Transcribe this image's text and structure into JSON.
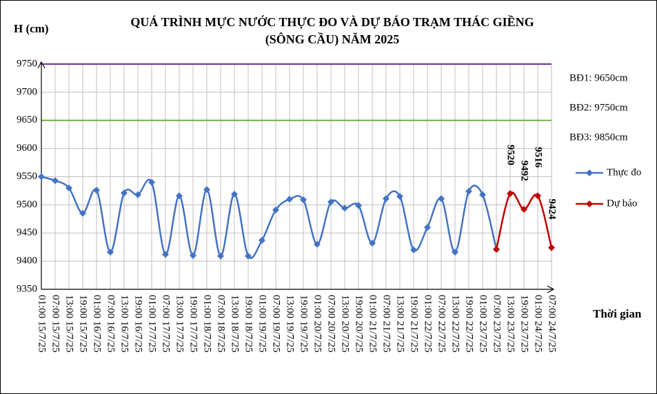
{
  "chart_data": {
    "type": "line",
    "title": [
      "QUÁ TRÌNH MỰC NƯỚC THỰC ĐO VÀ DỰ BÁO TRẠM THÁC GIỀNG",
      "(SÔNG CẦU) NĂM 2025"
    ],
    "y_label": "H (cm)",
    "x_label": "Thời gian",
    "categories": [
      "01:00 15/7/25",
      "07:00 15/7/25",
      "13:00 15/7/25",
      "19:00 15/7/25",
      "01:00 16/7/25",
      "07:00 16/7/25",
      "13:00 16/7/25",
      "19:00 16/7/25",
      "01:00 17/7/25",
      "07:00 17/7/25",
      "13:00 17/7/25",
      "19:00 17/7/25",
      "01:00 18/7/25",
      "07:00 18/7/25",
      "13:00 18/7/25",
      "19:00 18/7/25",
      "01:00 19/7/25",
      "07:00 19/7/25",
      "13:00 19/7/25",
      "19:00 19/7/25",
      "01:00 20/7/25",
      "07:00 20/7/25",
      "13:00 20/7/25",
      "19:00 20/7/25",
      "01:00 21/7/25",
      "07:00 21/7/25",
      "13:00 21/7/25",
      "19:00 21/7/25",
      "01:00 22/7/25",
      "07:00 22/7/25",
      "13:00 22/7/25",
      "19:00 22/7/25",
      "01:00 23/7/25",
      "07:00 23/7/25",
      "13:00 23/7/25",
      "19:00 23/7/25",
      "01:00 24/7/25",
      "07:00 24/7/25"
    ],
    "series": [
      {
        "name": "Thực đo",
        "color": "#4472c4",
        "values": [
          9550,
          9543,
          9530,
          9485,
          9526,
          9416,
          9521,
          9518,
          9540,
          9412,
          9516,
          9410,
          9527,
          9409,
          9519,
          9409,
          9437,
          9491,
          9510,
          9509,
          9430,
          9505,
          9494,
          9499,
          9432,
          9511,
          9515,
          9420,
          9460,
          9511,
          9416,
          9524,
          9518,
          9421,
          null,
          null,
          null,
          null
        ]
      },
      {
        "name": "Dự báo",
        "color": "#c00000",
        "values": [
          null,
          null,
          null,
          null,
          null,
          null,
          null,
          null,
          null,
          null,
          null,
          null,
          null,
          null,
          null,
          null,
          null,
          null,
          null,
          null,
          null,
          null,
          null,
          null,
          null,
          null,
          null,
          null,
          null,
          null,
          null,
          null,
          null,
          9421,
          9520,
          9492,
          9516,
          9424
        ],
        "value_labels": [
          null,
          null,
          null,
          null,
          null,
          null,
          null,
          null,
          null,
          null,
          null,
          null,
          null,
          null,
          null,
          null,
          null,
          null,
          null,
          null,
          null,
          null,
          null,
          null,
          null,
          null,
          null,
          null,
          null,
          null,
          null,
          null,
          null,
          null,
          "9520",
          "9492",
          "9516",
          "9424"
        ]
      }
    ],
    "thresholds": [
      {
        "label": "BĐ1: 9650cm",
        "value": 9650,
        "color": "#70ad47"
      },
      {
        "label": "BĐ2: 9750cm",
        "value": 9750,
        "color": "#7030a0"
      },
      {
        "label": "BĐ3: 9850cm",
        "value": 9850,
        "color": "#ff0000"
      }
    ],
    "ylim": [
      9350,
      9750
    ],
    "yticks": [
      9350,
      9400,
      9450,
      9500,
      9550,
      9600,
      9650,
      9700,
      9750
    ],
    "grid": true,
    "legend": "right"
  }
}
